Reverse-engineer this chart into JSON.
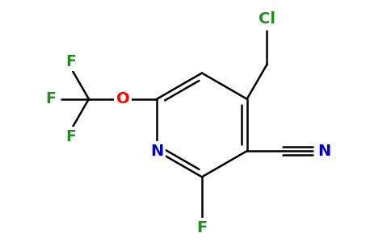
{
  "background_color": "#ffffff",
  "atom_colors": {
    "C": "#000000",
    "N": "#0000cd",
    "O": "#ff0000",
    "F": "#228b22",
    "Cl": "#228b22"
  },
  "bond_color": "#000000",
  "bond_width": 1.8,
  "figsize": [
    4.84,
    3.0
  ],
  "dpi": 100,
  "xlim": [
    0,
    9.68
  ],
  "ylim": [
    0,
    6.0
  ]
}
